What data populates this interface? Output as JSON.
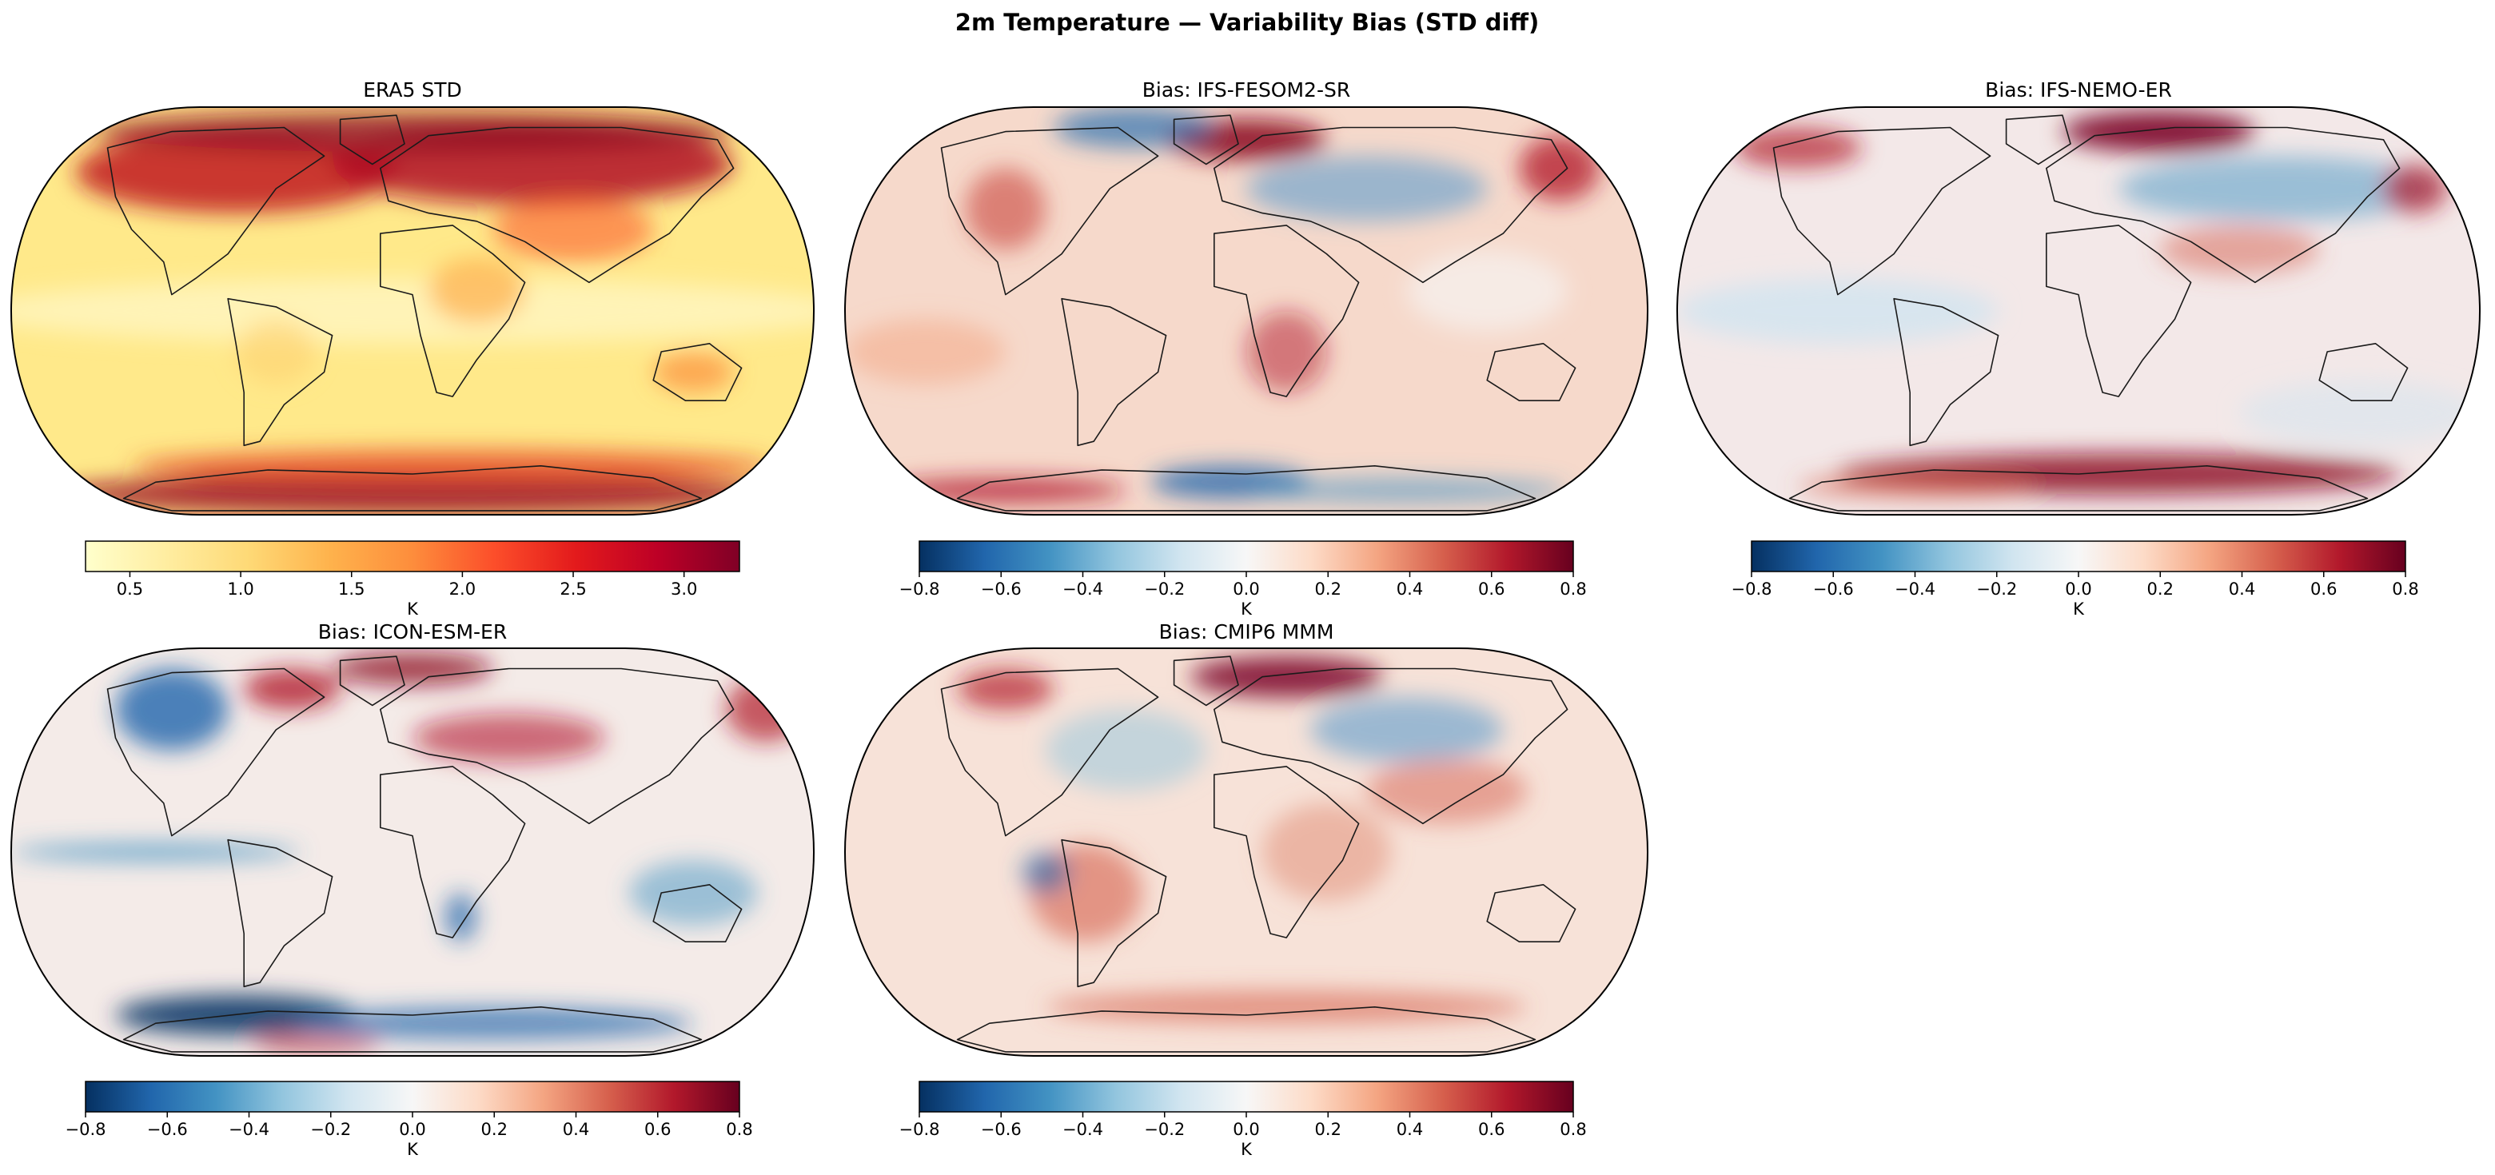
{
  "figure": {
    "title": "2m Temperature — Variability Bias (STD diff)"
  },
  "panels": [
    {
      "title": "ERA5 STD",
      "colormap": "YlOrRd",
      "colorbar": {
        "min": 0.3,
        "max": 3.25,
        "ticks": [
          0.5,
          1.0,
          1.5,
          2.0,
          2.5,
          3.0
        ],
        "tick_labels": [
          "0.5",
          "1.0",
          "1.5",
          "2.0",
          "2.5",
          "3.0"
        ],
        "unit": "K"
      }
    },
    {
      "title": "Bias: IFS-FESOM2-SR",
      "colormap": "RdBu_r",
      "colorbar": {
        "min": -0.8,
        "max": 0.8,
        "ticks": [
          -0.8,
          -0.6,
          -0.4,
          -0.2,
          0.0,
          0.2,
          0.4,
          0.6,
          0.8
        ],
        "tick_labels": [
          "−0.8",
          "−0.6",
          "−0.4",
          "−0.2",
          "0.0",
          "0.2",
          "0.4",
          "0.6",
          "0.8"
        ],
        "unit": "K"
      }
    },
    {
      "title": "Bias: IFS-NEMO-ER",
      "colormap": "RdBu_r",
      "colorbar": {
        "min": -0.8,
        "max": 0.8,
        "ticks": [
          -0.8,
          -0.6,
          -0.4,
          -0.2,
          0.0,
          0.2,
          0.4,
          0.6,
          0.8
        ],
        "tick_labels": [
          "−0.8",
          "−0.6",
          "−0.4",
          "−0.2",
          "0.0",
          "0.2",
          "0.4",
          "0.6",
          "0.8"
        ],
        "unit": "K"
      }
    },
    {
      "title": "Bias: ICON-ESM-ER",
      "colormap": "RdBu_r",
      "colorbar": {
        "min": -0.8,
        "max": 0.8,
        "ticks": [
          -0.8,
          -0.6,
          -0.4,
          -0.2,
          0.0,
          0.2,
          0.4,
          0.6,
          0.8
        ],
        "tick_labels": [
          "−0.8",
          "−0.6",
          "−0.4",
          "−0.2",
          "0.0",
          "0.2",
          "0.4",
          "0.6",
          "0.8"
        ],
        "unit": "K"
      }
    },
    {
      "title": "Bias: CMIP6 MMM",
      "colormap": "RdBu_r",
      "colorbar": {
        "min": -0.8,
        "max": 0.8,
        "ticks": [
          -0.8,
          -0.6,
          -0.4,
          -0.2,
          0.0,
          0.2,
          0.4,
          0.6,
          0.8
        ],
        "tick_labels": [
          "−0.8",
          "−0.6",
          "−0.4",
          "−0.2",
          "0.0",
          "0.2",
          "0.4",
          "0.6",
          "0.8"
        ],
        "unit": "K"
      }
    }
  ]
}
